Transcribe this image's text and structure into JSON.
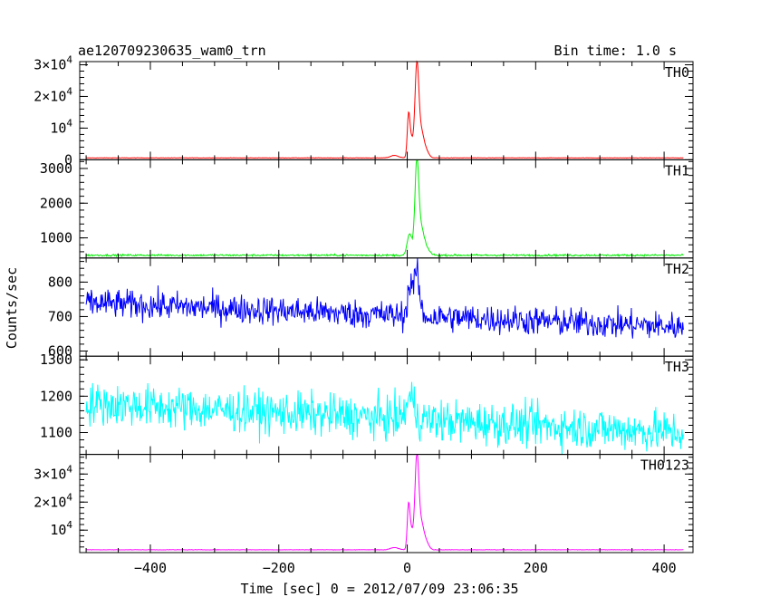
{
  "chart_data": {
    "type": "line",
    "title": "ae120709230635_wam0_trn",
    "bin_time": "Bin time: 1.0 s",
    "xlabel": "Time [sec] 0 = 2012/07/09 23:06:35",
    "ylabel": "Counts/sec",
    "xlim": [
      -510,
      445
    ],
    "xticks": [
      -400,
      -200,
      0,
      200,
      400
    ],
    "xtick_labels": [
      "−400",
      "−200",
      "0",
      "200",
      "400"
    ],
    "panels": [
      {
        "name": "TH0",
        "color": "#ff0000",
        "ylim": [
          0,
          31000
        ],
        "yticks": [
          0,
          10000,
          20000,
          30000
        ],
        "ytick_labels": [
          "0",
          "10^4",
          "2×10^4",
          "3×10^4"
        ],
        "baseline": 600,
        "noise": 60,
        "peaks": [
          [
            -20,
            800,
            6
          ],
          [
            2,
            12000,
            2
          ],
          [
            6,
            6000,
            3
          ],
          [
            15,
            29000,
            3
          ],
          [
            22,
            8000,
            4
          ],
          [
            30,
            2000,
            4
          ]
        ]
      },
      {
        "name": "TH1",
        "color": "#00ee00",
        "ylim": [
          420,
          3250
        ],
        "yticks": [
          1000,
          2000,
          3000
        ],
        "ytick_labels": [
          "1000",
          "2000",
          "3000"
        ],
        "baseline": 500,
        "noise": 25,
        "peaks": [
          [
            2,
            400,
            3
          ],
          [
            6,
            350,
            3
          ],
          [
            15,
            2700,
            3
          ],
          [
            22,
            700,
            4
          ],
          [
            30,
            200,
            5
          ]
        ]
      },
      {
        "name": "TH2",
        "color": "#0000ff",
        "ylim": [
          585,
          870
        ],
        "yticks": [
          600,
          700,
          800
        ],
        "ytick_labels": [
          "600",
          "700",
          "800"
        ],
        "baseline_start": 740,
        "baseline_end": 670,
        "noise": 40,
        "peaks": [
          [
            5,
            90,
            4
          ],
          [
            15,
            120,
            4
          ]
        ]
      },
      {
        "name": "TH3",
        "color": "#00ffff",
        "ylim": [
          1040,
          1310
        ],
        "yticks": [
          1100,
          1200,
          1300
        ],
        "ytick_labels": [
          "1100",
          "1200",
          "1300"
        ],
        "baseline_start": 1180,
        "baseline_end": 1100,
        "noise": 55,
        "peaks": [
          [
            5,
            60,
            6
          ]
        ]
      },
      {
        "name": "TH0123",
        "color": "#ff00ff",
        "ylim": [
          2000,
          37000
        ],
        "yticks": [
          10000,
          20000,
          30000
        ],
        "ytick_labels": [
          "10^4",
          "2×10^4",
          "3×10^4"
        ],
        "baseline": 3000,
        "noise": 80,
        "peaks": [
          [
            -20,
            800,
            6
          ],
          [
            2,
            14000,
            2
          ],
          [
            6,
            7000,
            3
          ],
          [
            15,
            33000,
            3
          ],
          [
            22,
            9000,
            4
          ],
          [
            30,
            2500,
            4
          ]
        ]
      }
    ]
  }
}
